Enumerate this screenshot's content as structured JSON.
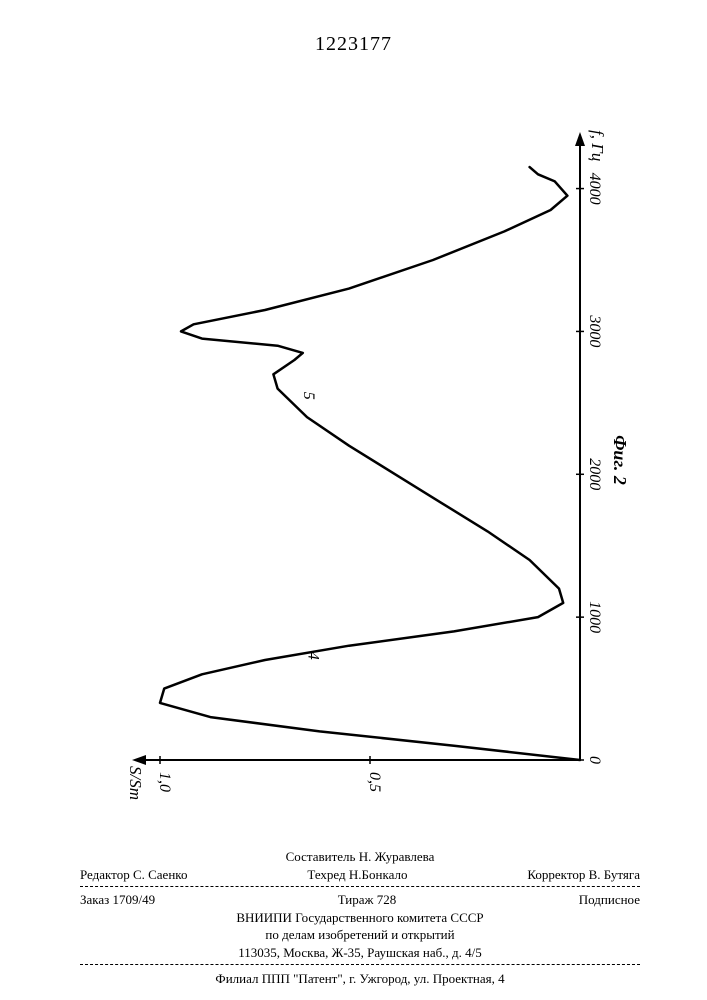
{
  "document_number": "1223177",
  "chart": {
    "type": "line",
    "orientation": "rotated-90-ccw",
    "x_axis": {
      "label": "f, Гц",
      "min": 0,
      "max": 4200,
      "ticks": [
        0,
        1000,
        2000,
        3000,
        4000
      ]
    },
    "y_axis": {
      "label": "S/Smax",
      "min": 0,
      "max": 1.0,
      "ticks": [
        0,
        0.5,
        1.0
      ],
      "tick_labels": [
        "0",
        "0,5",
        "1,0"
      ]
    },
    "curve_label_1": "4",
    "curve_label_2": "5",
    "figure_caption": "Фиг. 2",
    "series": [
      {
        "f": 0,
        "s": 0.0
      },
      {
        "f": 100,
        "s": 0.3
      },
      {
        "f": 200,
        "s": 0.62
      },
      {
        "f": 300,
        "s": 0.88
      },
      {
        "f": 400,
        "s": 1.0
      },
      {
        "f": 500,
        "s": 0.99
      },
      {
        "f": 600,
        "s": 0.9
      },
      {
        "f": 700,
        "s": 0.75
      },
      {
        "f": 800,
        "s": 0.55
      },
      {
        "f": 900,
        "s": 0.3
      },
      {
        "f": 1000,
        "s": 0.1
      },
      {
        "f": 1100,
        "s": 0.04
      },
      {
        "f": 1200,
        "s": 0.05
      },
      {
        "f": 1400,
        "s": 0.12
      },
      {
        "f": 1600,
        "s": 0.22
      },
      {
        "f": 1800,
        "s": 0.33
      },
      {
        "f": 2000,
        "s": 0.44
      },
      {
        "f": 2200,
        "s": 0.55
      },
      {
        "f": 2400,
        "s": 0.65
      },
      {
        "f": 2600,
        "s": 0.72
      },
      {
        "f": 2700,
        "s": 0.73
      },
      {
        "f": 2800,
        "s": 0.68
      },
      {
        "f": 2850,
        "s": 0.66
      },
      {
        "f": 2900,
        "s": 0.72
      },
      {
        "f": 2950,
        "s": 0.9
      },
      {
        "f": 3000,
        "s": 0.95
      },
      {
        "f": 3050,
        "s": 0.92
      },
      {
        "f": 3150,
        "s": 0.75
      },
      {
        "f": 3300,
        "s": 0.55
      },
      {
        "f": 3500,
        "s": 0.35
      },
      {
        "f": 3700,
        "s": 0.18
      },
      {
        "f": 3850,
        "s": 0.07
      },
      {
        "f": 3950,
        "s": 0.03
      },
      {
        "f": 4050,
        "s": 0.06
      },
      {
        "f": 4100,
        "s": 0.1
      },
      {
        "f": 4150,
        "s": 0.12
      }
    ],
    "stroke_color": "#000000",
    "stroke_width": 2.5,
    "axis_color": "#000000",
    "axis_width": 2
  },
  "footer": {
    "compiler": "Составитель Н. Журавлева",
    "editor": "Редактор С. Саенко",
    "tech_editor": "Техред Н.Бонкало",
    "corrector": "Корректор В. Бутяга",
    "order_no": "Заказ 1709/49",
    "tirazh": "Тираж 728",
    "subscription": "Подписное",
    "org1": "ВНИИПИ Государственного комитета СССР",
    "org2": "по делам изобретений и открытий",
    "address1": "113035, Москва, Ж-35, Раушская наб., д. 4/5",
    "filial": "Филиал ППП \"Патент\", г. Ужгород, ул. Проектная, 4"
  }
}
